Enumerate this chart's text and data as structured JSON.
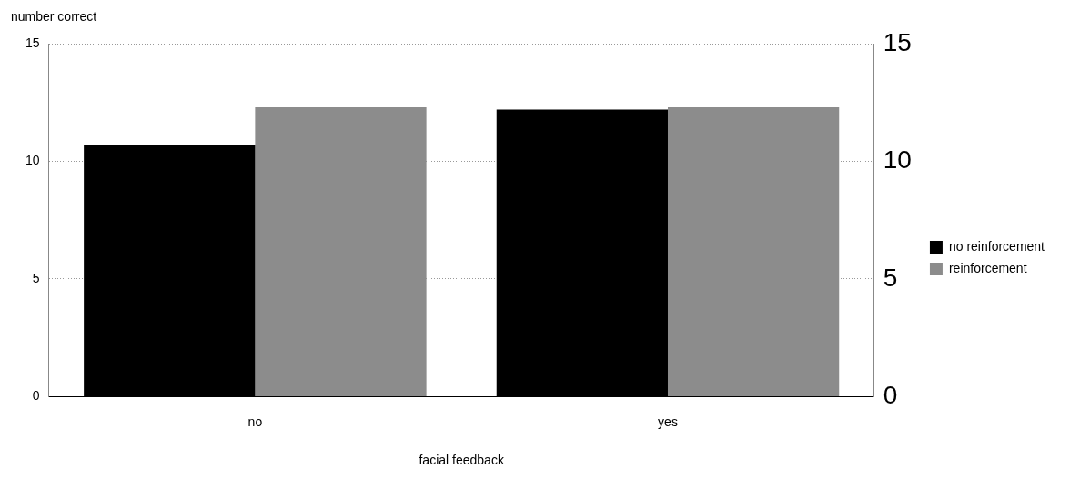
{
  "chart_data": {
    "type": "bar",
    "xlabel": "facial feedback",
    "ylabel": "number correct",
    "categories": [
      "no",
      "yes"
    ],
    "series": [
      {
        "name": "no reinforcement",
        "color": "#000000",
        "values": [
          10.7,
          12.2
        ]
      },
      {
        "name": "reinforcement",
        "color": "#8c8c8c",
        "values": [
          12.3,
          12.3
        ]
      }
    ],
    "ylim": [
      0,
      15
    ],
    "yticks": [
      0,
      5,
      10,
      15
    ],
    "y2lim": [
      0,
      15
    ],
    "y2ticks": [
      0,
      5,
      10,
      15
    ],
    "grid": "y",
    "legend": "right"
  }
}
